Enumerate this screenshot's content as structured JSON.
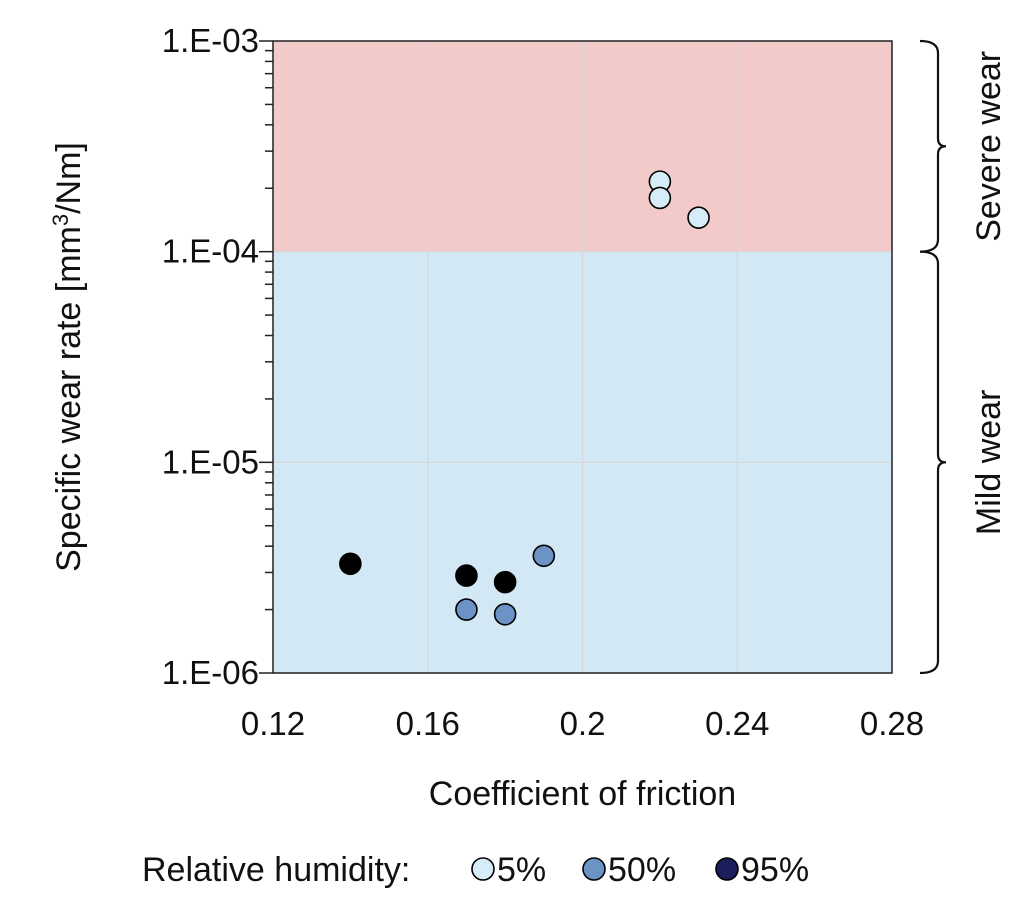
{
  "chart_data": {
    "type": "scatter",
    "xlabel": "Coefficient of friction",
    "ylabel_main": "Specific wear rate [mm",
    "ylabel_sup": "3",
    "ylabel_tail": "/Nm]",
    "xlim": [
      0.12,
      0.28
    ],
    "ylim": [
      1e-06,
      0.001
    ],
    "yscale": "log",
    "grid": true,
    "xticks": [
      {
        "value": 0.12,
        "label": "0.12"
      },
      {
        "value": 0.16,
        "label": "0.16"
      },
      {
        "value": 0.2,
        "label": "0.2"
      },
      {
        "value": 0.24,
        "label": "0.24"
      },
      {
        "value": 0.28,
        "label": "0.28"
      }
    ],
    "yticks": [
      {
        "value": 1e-06,
        "label": "1.E-06"
      },
      {
        "value": 1e-05,
        "label": "1.E-05"
      },
      {
        "value": 0.0001,
        "label": "1.E-04"
      },
      {
        "value": 0.001,
        "label": "1.E-03"
      }
    ],
    "regions": [
      {
        "label": "Severe wear",
        "y_from": 0.0001,
        "y_to": 0.001,
        "color": "#f2caca"
      },
      {
        "label": "Mild wear",
        "y_from": 1e-06,
        "y_to": 0.0001,
        "color": "#d3e8f5"
      }
    ],
    "legend": {
      "title": "Relative humidity:",
      "placement": "bottom"
    },
    "series": [
      {
        "name": "5%",
        "color": "#d6ecf7",
        "points": [
          {
            "x": 0.22,
            "y": 0.000215
          },
          {
            "x": 0.22,
            "y": 0.00018
          },
          {
            "x": 0.23,
            "y": 0.000145
          }
        ]
      },
      {
        "name": "50%",
        "color": "#6c93c6",
        "points": [
          {
            "x": 0.19,
            "y": 3.6e-06
          },
          {
            "x": 0.17,
            "y": 2e-06
          },
          {
            "x": 0.18,
            "y": 1.9e-06
          }
        ]
      },
      {
        "name": "95%",
        "color": "#000000",
        "legend_color": "#1a1f5c",
        "points": [
          {
            "x": 0.14,
            "y": 3.3e-06
          },
          {
            "x": 0.17,
            "y": 2.9e-06
          },
          {
            "x": 0.18,
            "y": 2.7e-06
          }
        ]
      }
    ]
  }
}
